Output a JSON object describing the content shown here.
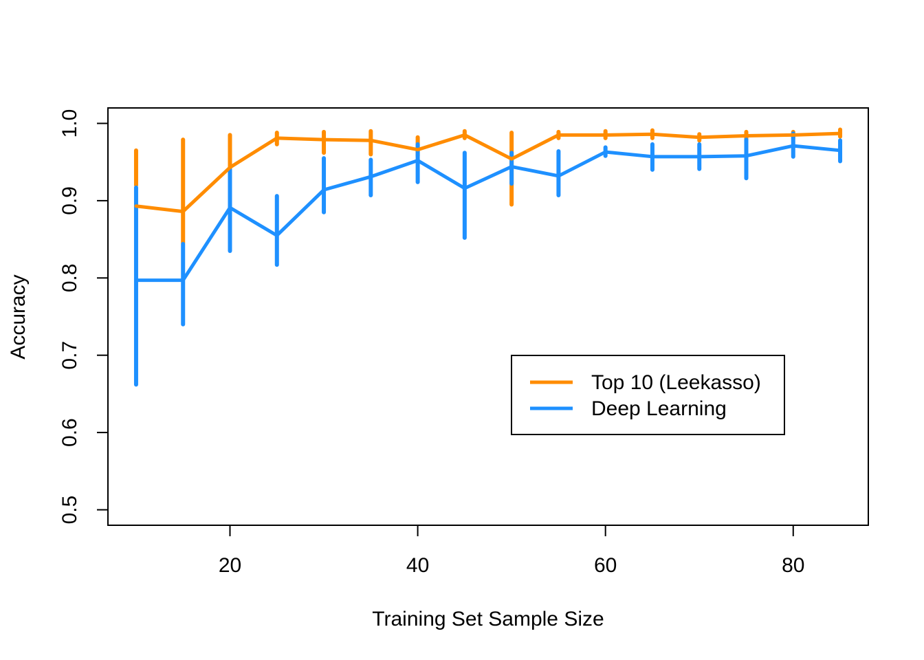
{
  "chart_data": {
    "type": "line",
    "title": "",
    "xlabel": "Training Set Sample Size",
    "ylabel": "Accuracy",
    "xlim": [
      7,
      88
    ],
    "ylim": [
      0.48,
      1.02
    ],
    "xticks": [
      20,
      40,
      60,
      80
    ],
    "yticks": [
      0.5,
      0.6,
      0.7,
      0.8,
      0.9,
      1.0
    ],
    "ytick_labels": [
      "0.5",
      "0.6",
      "0.7",
      "0.8",
      "0.9",
      "1.0"
    ],
    "x": [
      10,
      15,
      20,
      25,
      30,
      35,
      40,
      45,
      50,
      55,
      60,
      65,
      70,
      75,
      80,
      85
    ],
    "series": [
      {
        "name": "Top 10 (Leekasso)",
        "color": "#FF8C00",
        "values": [
          0.893,
          0.886,
          0.943,
          0.981,
          0.979,
          0.978,
          0.966,
          0.985,
          0.954,
          0.985,
          0.985,
          0.986,
          0.982,
          0.984,
          0.985,
          0.987
        ],
        "err_low": [
          0.92,
          0.845,
          0.935,
          0.973,
          0.962,
          0.96,
          0.958,
          0.981,
          0.895,
          0.981,
          0.981,
          0.981,
          0.978,
          0.979,
          0.981,
          0.983
        ],
        "err_high": [
          0.965,
          0.979,
          0.985,
          0.988,
          0.989,
          0.99,
          0.982,
          0.99,
          0.988,
          0.989,
          0.99,
          0.991,
          0.986,
          0.989,
          0.989,
          0.992
        ]
      },
      {
        "name": "Deep Learning",
        "color": "#1E90FF",
        "values": [
          0.797,
          0.797,
          0.891,
          0.855,
          0.914,
          0.931,
          0.952,
          0.916,
          0.944,
          0.932,
          0.963,
          0.957,
          0.957,
          0.958,
          0.971,
          0.965
        ],
        "err_low": [
          0.662,
          0.74,
          0.835,
          0.817,
          0.885,
          0.907,
          0.924,
          0.852,
          0.922,
          0.907,
          0.958,
          0.94,
          0.941,
          0.929,
          0.957,
          0.951
        ],
        "err_high": [
          0.917,
          0.844,
          0.94,
          0.906,
          0.955,
          0.953,
          0.973,
          0.962,
          0.962,
          0.964,
          0.969,
          0.973,
          0.973,
          0.979,
          0.987,
          0.978
        ]
      }
    ],
    "legend_position": "center-right"
  }
}
